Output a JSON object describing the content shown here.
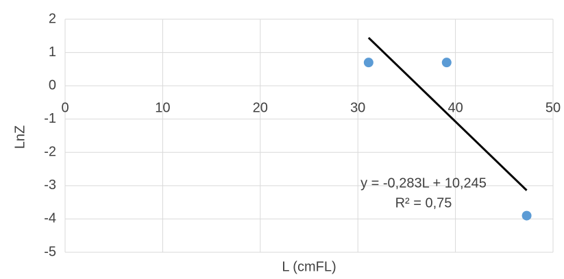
{
  "chart_data": {
    "type": "scatter",
    "x_label": "L (cmFL)",
    "y_label": "LnZ",
    "series": [
      {
        "color": "#5b9bd5",
        "x": [
          31.1,
          39.1,
          47.3
        ],
        "values": [
          0.7,
          0.7,
          -3.9
        ]
      }
    ],
    "trendline": {
      "slope": -0.283,
      "intercept": 10.245,
      "x_range": [
        31.1,
        47.3
      ],
      "color": "#000000",
      "label": "y = -0,283L + 10,245",
      "r2_label": "R² = 0,75"
    },
    "xlim": [
      0,
      50
    ],
    "xticks": [
      0,
      10,
      20,
      30,
      40,
      50
    ],
    "ylim": [
      -5,
      2
    ],
    "yticks": [
      -5,
      -4,
      -3,
      -2,
      -1,
      0,
      1,
      2
    ],
    "grid": true
  }
}
